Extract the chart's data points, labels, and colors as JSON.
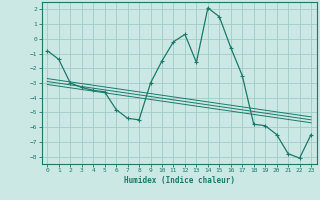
{
  "xlabel": "Humidex (Indice chaleur)",
  "background_color": "#cce8e4",
  "grid_color": "#a0ccc8",
  "line_color": "#1a7a6a",
  "xlim": [
    -0.5,
    23.5
  ],
  "ylim": [
    -8.5,
    2.5
  ],
  "xticks": [
    0,
    1,
    2,
    3,
    4,
    5,
    6,
    7,
    8,
    9,
    10,
    11,
    12,
    13,
    14,
    15,
    16,
    17,
    18,
    19,
    20,
    21,
    22,
    23
  ],
  "yticks": [
    -8,
    -7,
    -6,
    -5,
    -4,
    -3,
    -2,
    -1,
    0,
    1,
    2
  ],
  "main_x": [
    0,
    1,
    2,
    3,
    4,
    5,
    6,
    7,
    8,
    9,
    10,
    11,
    12,
    13,
    14,
    15,
    16,
    17,
    18,
    19,
    20,
    21,
    22,
    23
  ],
  "main_y": [
    -0.8,
    -1.4,
    -3.0,
    -3.3,
    -3.5,
    -3.6,
    -4.8,
    -5.4,
    -5.5,
    -3.0,
    -1.5,
    -0.2,
    0.3,
    -1.6,
    2.1,
    1.5,
    -0.6,
    -2.5,
    -5.8,
    -5.9,
    -6.5,
    -7.8,
    -8.1,
    -6.5
  ],
  "linear_lines": [
    {
      "x": [
        0,
        23
      ],
      "y": [
        -2.7,
        -5.3
      ]
    },
    {
      "x": [
        0,
        23
      ],
      "y": [
        -2.9,
        -5.5
      ]
    },
    {
      "x": [
        0,
        23
      ],
      "y": [
        -3.1,
        -5.7
      ]
    }
  ]
}
